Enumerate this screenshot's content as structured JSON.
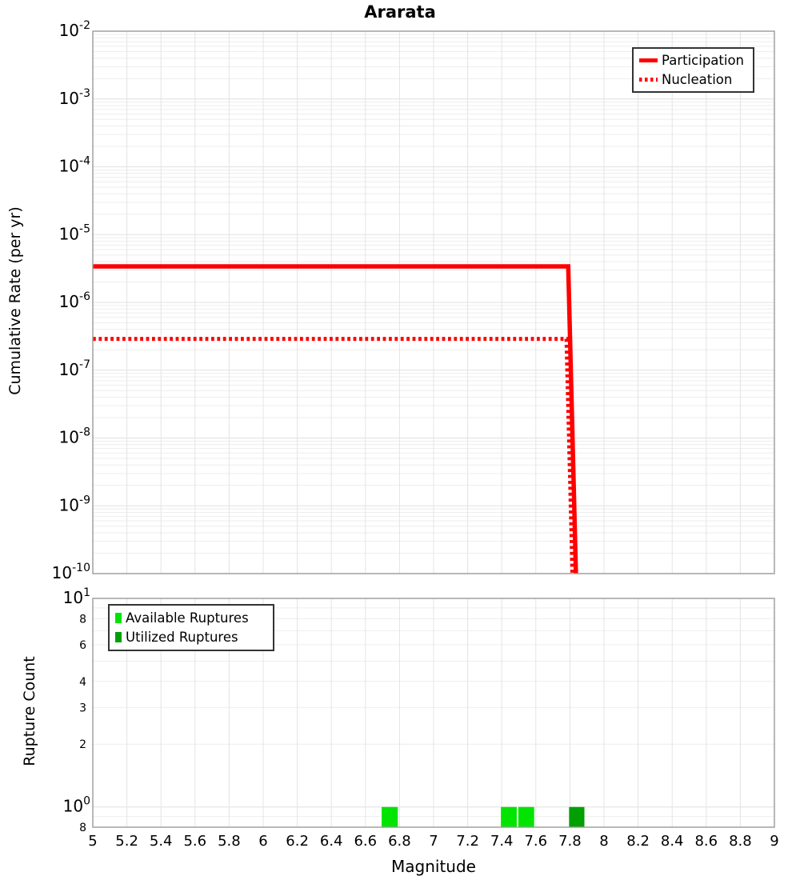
{
  "title": "Ararata",
  "top_plot": {
    "ylabel": "Cumulative Rate (per yr)"
  },
  "bottom_plot": {
    "ylabel": "Rupture Count",
    "xlabel": "Magnitude"
  },
  "axes": {
    "x_tick_labels": [
      "5",
      "5.2",
      "5.4",
      "5.6",
      "5.8",
      "6",
      "6.2",
      "6.4",
      "6.6",
      "6.8",
      "7",
      "7.2",
      "7.4",
      "7.6",
      "7.8",
      "8",
      "8.2",
      "8.4",
      "8.6",
      "8.8",
      "9"
    ],
    "top_y_tick_exponents": [
      "-2",
      "-3",
      "-4",
      "-5",
      "-6",
      "-7",
      "-8",
      "-9",
      "-10"
    ],
    "bottom_y_major_ticks": [
      {
        "base": "10",
        "exp": "1",
        "value": 10
      },
      {
        "base": "10",
        "exp": "0",
        "value": 1
      }
    ],
    "bottom_y_minor_ticks": [
      {
        "label": "8",
        "value": 8
      },
      {
        "label": "6",
        "value": 6
      },
      {
        "label": "4",
        "value": 4
      },
      {
        "label": "3",
        "value": 3
      },
      {
        "label": "2",
        "value": 2
      },
      {
        "label": "8",
        "value": 0.8
      }
    ]
  },
  "chart_data": [
    {
      "type": "line",
      "title": "Ararata",
      "xlabel": "Magnitude",
      "ylabel": "Cumulative Rate (per yr)",
      "xlim": [
        5,
        9
      ],
      "ylim": [
        1e-10,
        0.01
      ],
      "x_scale": "linear",
      "y_scale": "log",
      "grid": true,
      "legend_position": "top-right",
      "series": [
        {
          "name": "Participation",
          "color": "#ff0000",
          "line_style": "solid",
          "line_width": 5.5,
          "points": [
            [
              5,
              3.4e-06
            ],
            [
              7.79,
              3.4e-06
            ],
            [
              7.835,
              1e-10
            ]
          ]
        },
        {
          "name": "Nucleation",
          "color": "#ff0000",
          "line_style": "dotted",
          "line_width": 5,
          "points": [
            [
              5,
              2.9e-07
            ],
            [
              7.78,
              2.9e-07
            ],
            [
              7.815,
              1e-10
            ]
          ]
        }
      ]
    },
    {
      "type": "bar",
      "xlabel": "Magnitude",
      "ylabel": "Rupture Count",
      "xlim": [
        5,
        9
      ],
      "ylim": [
        0.8,
        10
      ],
      "x_scale": "linear",
      "y_scale": "log",
      "grid": true,
      "legend_position": "top-left",
      "series": [
        {
          "name": "Available Ruptures",
          "color": "#00e400",
          "bars": [
            {
              "x0": 6.695,
              "x1": 6.79,
              "count": 1
            },
            {
              "x0": 7.395,
              "x1": 7.488,
              "count": 1
            },
            {
              "x0": 7.497,
              "x1": 7.59,
              "count": 1
            }
          ]
        },
        {
          "name": "Utilized Ruptures",
          "color": "#00a000",
          "bars": [
            {
              "x0": 7.795,
              "x1": 7.885,
              "count": 1
            }
          ]
        }
      ]
    }
  ],
  "colors": {
    "line_red": "#ff0000",
    "available_green": "#00e400",
    "utilized_green": "#00a000"
  }
}
